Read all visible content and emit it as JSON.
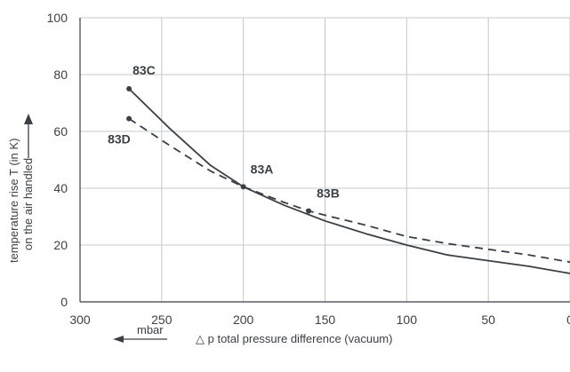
{
  "chart_data": {
    "type": "line",
    "title": "",
    "xlabel": "△ p total pressure difference (vacuum)",
    "xunit": "mbar",
    "ylabel_lines": [
      "temperature rise T (in K)",
      "on the air handled"
    ],
    "xlim": [
      300,
      0
    ],
    "ylim": [
      0,
      100
    ],
    "x_ticks": [
      300,
      250,
      200,
      150,
      100,
      50,
      0
    ],
    "y_ticks": [
      0,
      20,
      40,
      60,
      80,
      100
    ],
    "grid": true,
    "colors": {
      "line": "#3a3f45",
      "grid": "#c4c8cc",
      "frame": "#3a3f45"
    },
    "series": [
      {
        "style": "solid",
        "x": [
          270,
          245,
          220,
          200,
          175,
          150,
          125,
          100,
          75,
          50,
          25,
          0
        ],
        "y": [
          75,
          61,
          48,
          40.5,
          34,
          28.5,
          24,
          20,
          16.5,
          14.5,
          12.5,
          10
        ]
      },
      {
        "style": "dashed",
        "x": [
          270,
          245,
          220,
          200,
          175,
          160,
          150,
          125,
          100,
          75,
          50,
          25,
          0
        ],
        "y": [
          64.5,
          55,
          46,
          40.5,
          35,
          32,
          30.5,
          27,
          23,
          20.5,
          18.5,
          16.5,
          14
        ]
      }
    ],
    "points": [
      {
        "label": "83C",
        "x": 270,
        "y": 75
      },
      {
        "label": "83D",
        "x": 270,
        "y": 64.5
      },
      {
        "label": "83A",
        "x": 200,
        "y": 40.5
      },
      {
        "label": "83B",
        "x": 160,
        "y": 32
      }
    ]
  }
}
